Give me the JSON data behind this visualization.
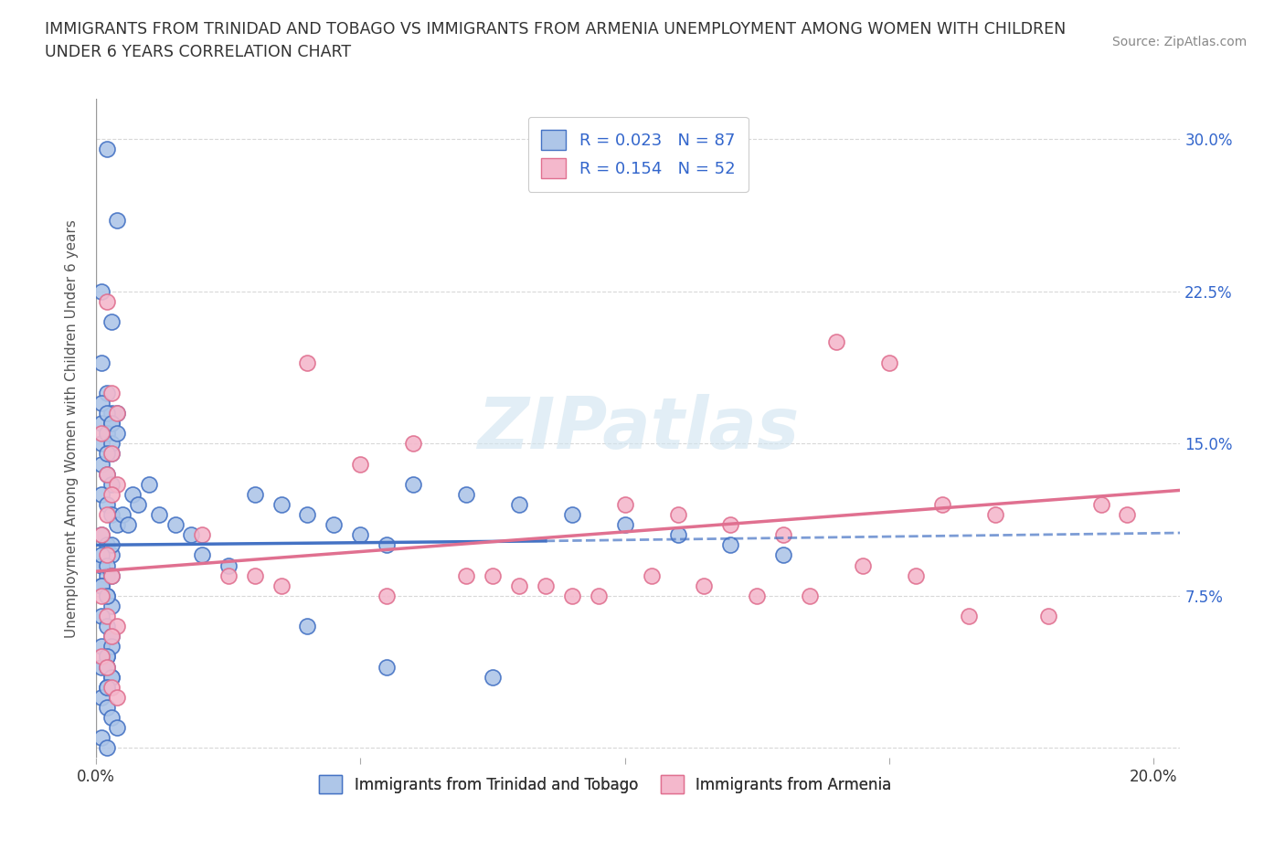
{
  "title": "IMMIGRANTS FROM TRINIDAD AND TOBAGO VS IMMIGRANTS FROM ARMENIA UNEMPLOYMENT AMONG WOMEN WITH CHILDREN\nUNDER 6 YEARS CORRELATION CHART",
  "source": "Source: ZipAtlas.com",
  "ylabel": "Unemployment Among Women with Children Under 6 years",
  "xlim": [
    0.0,
    0.205
  ],
  "ylim": [
    -0.005,
    0.32
  ],
  "xticks": [
    0.0,
    0.05,
    0.1,
    0.15,
    0.2
  ],
  "xtick_labels": [
    "0.0%",
    "",
    "",
    "",
    "20.0%"
  ],
  "ytick_labels_right": [
    "",
    "7.5%",
    "15.0%",
    "22.5%",
    "30.0%"
  ],
  "yticks": [
    0.0,
    0.075,
    0.15,
    0.225,
    0.3
  ],
  "R1": 0.023,
  "N1": 87,
  "R2": 0.154,
  "N2": 52,
  "color1": "#aec6e8",
  "color2": "#f4b8cc",
  "line_color1": "#4472c4",
  "line_color2": "#e07090",
  "legend_label1": "Immigrants from Trinidad and Tobago",
  "legend_label2": "Immigrants from Armenia",
  "watermark": "ZIPatlas",
  "background_color": "#ffffff",
  "grid_color": "#d8d8d8",
  "scatter1_x": [
    0.002,
    0.004,
    0.001,
    0.003,
    0.001,
    0.002,
    0.003,
    0.001,
    0.002,
    0.001,
    0.003,
    0.001,
    0.002,
    0.003,
    0.001,
    0.002,
    0.003,
    0.004,
    0.001,
    0.002,
    0.003,
    0.001,
    0.002,
    0.001,
    0.002,
    0.003,
    0.001,
    0.002,
    0.003,
    0.001,
    0.002,
    0.001,
    0.003,
    0.002,
    0.001,
    0.002,
    0.003,
    0.004,
    0.001,
    0.002,
    0.003,
    0.001,
    0.002,
    0.003,
    0.001,
    0.002,
    0.005,
    0.006,
    0.007,
    0.008,
    0.01,
    0.012,
    0.015,
    0.018,
    0.02,
    0.025,
    0.03,
    0.035,
    0.04,
    0.045,
    0.05,
    0.055,
    0.06,
    0.07,
    0.08,
    0.09,
    0.1,
    0.11,
    0.12,
    0.13,
    0.004,
    0.003,
    0.002,
    0.003,
    0.002,
    0.003,
    0.002,
    0.002,
    0.003,
    0.002,
    0.001,
    0.002,
    0.003,
    0.004,
    0.055,
    0.075,
    0.04
  ],
  "scatter1_y": [
    0.295,
    0.26,
    0.225,
    0.21,
    0.19,
    0.175,
    0.165,
    0.16,
    0.155,
    0.15,
    0.145,
    0.14,
    0.135,
    0.13,
    0.125,
    0.12,
    0.115,
    0.11,
    0.105,
    0.1,
    0.095,
    0.09,
    0.085,
    0.08,
    0.075,
    0.07,
    0.065,
    0.06,
    0.055,
    0.05,
    0.045,
    0.04,
    0.035,
    0.03,
    0.025,
    0.02,
    0.015,
    0.01,
    0.005,
    0.0,
    0.1,
    0.095,
    0.09,
    0.085,
    0.08,
    0.075,
    0.115,
    0.11,
    0.125,
    0.12,
    0.13,
    0.115,
    0.11,
    0.105,
    0.095,
    0.09,
    0.125,
    0.12,
    0.115,
    0.11,
    0.105,
    0.1,
    0.13,
    0.125,
    0.12,
    0.115,
    0.11,
    0.105,
    0.1,
    0.095,
    0.165,
    0.16,
    0.155,
    0.15,
    0.145,
    0.05,
    0.045,
    0.04,
    0.035,
    0.03,
    0.17,
    0.165,
    0.16,
    0.155,
    0.04,
    0.035,
    0.06
  ],
  "scatter2_x": [
    0.002,
    0.003,
    0.004,
    0.001,
    0.003,
    0.002,
    0.004,
    0.003,
    0.002,
    0.001,
    0.002,
    0.003,
    0.001,
    0.002,
    0.004,
    0.003,
    0.001,
    0.002,
    0.003,
    0.004,
    0.02,
    0.03,
    0.04,
    0.05,
    0.06,
    0.07,
    0.08,
    0.09,
    0.1,
    0.11,
    0.12,
    0.13,
    0.14,
    0.15,
    0.16,
    0.17,
    0.18,
    0.19,
    0.195,
    0.025,
    0.035,
    0.055,
    0.075,
    0.085,
    0.095,
    0.105,
    0.115,
    0.125,
    0.135,
    0.145,
    0.155,
    0.165
  ],
  "scatter2_y": [
    0.22,
    0.175,
    0.165,
    0.155,
    0.145,
    0.135,
    0.13,
    0.125,
    0.115,
    0.105,
    0.095,
    0.085,
    0.075,
    0.065,
    0.06,
    0.055,
    0.045,
    0.04,
    0.03,
    0.025,
    0.105,
    0.085,
    0.19,
    0.14,
    0.15,
    0.085,
    0.08,
    0.075,
    0.12,
    0.115,
    0.11,
    0.105,
    0.2,
    0.19,
    0.12,
    0.115,
    0.065,
    0.12,
    0.115,
    0.085,
    0.08,
    0.075,
    0.085,
    0.08,
    0.075,
    0.085,
    0.08,
    0.075,
    0.075,
    0.09,
    0.085,
    0.065
  ]
}
